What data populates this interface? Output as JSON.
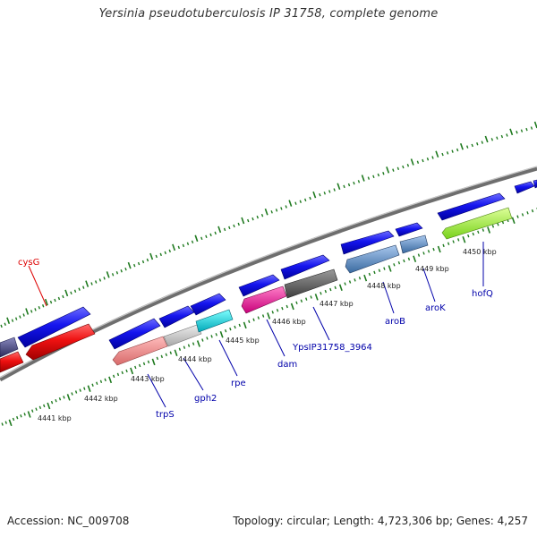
{
  "title": "Yersinia pseudotuberculosis IP 31758, complete genome",
  "footer": {
    "accession": "Accession: NC_009708",
    "summary": "Topology: circular; Length: 4,723,306 bp; Genes: 4,257"
  },
  "ruler_labels": [
    "4441 kbp",
    "4442 kbp",
    "4443 kbp",
    "4444 kbp",
    "4445 kbp",
    "4446 kbp",
    "4447 kbp",
    "4448 kbp",
    "4449 kbp",
    "4450 kbp"
  ],
  "gene_labels": [
    {
      "name": "cysG",
      "color": "#dd0000"
    },
    {
      "name": "trpS",
      "color": "#0000aa"
    },
    {
      "name": "gph2",
      "color": "#0000aa"
    },
    {
      "name": "rpe",
      "color": "#0000aa"
    },
    {
      "name": "dam",
      "color": "#0000aa"
    },
    {
      "name": "YpsIP31758_3964",
      "color": "#0000aa"
    },
    {
      "name": "aroB",
      "color": "#0000aa"
    },
    {
      "name": "aroK",
      "color": "#0000aa"
    },
    {
      "name": "hofQ",
      "color": "#0000aa"
    }
  ],
  "colors": {
    "blue_gene": "#1010e8",
    "red_gene": "#ee1010",
    "backbone": "#8a8a8a",
    "tick": "#1f7a1f",
    "label_blue": "#0000aa",
    "label_red": "#dd0000"
  }
}
